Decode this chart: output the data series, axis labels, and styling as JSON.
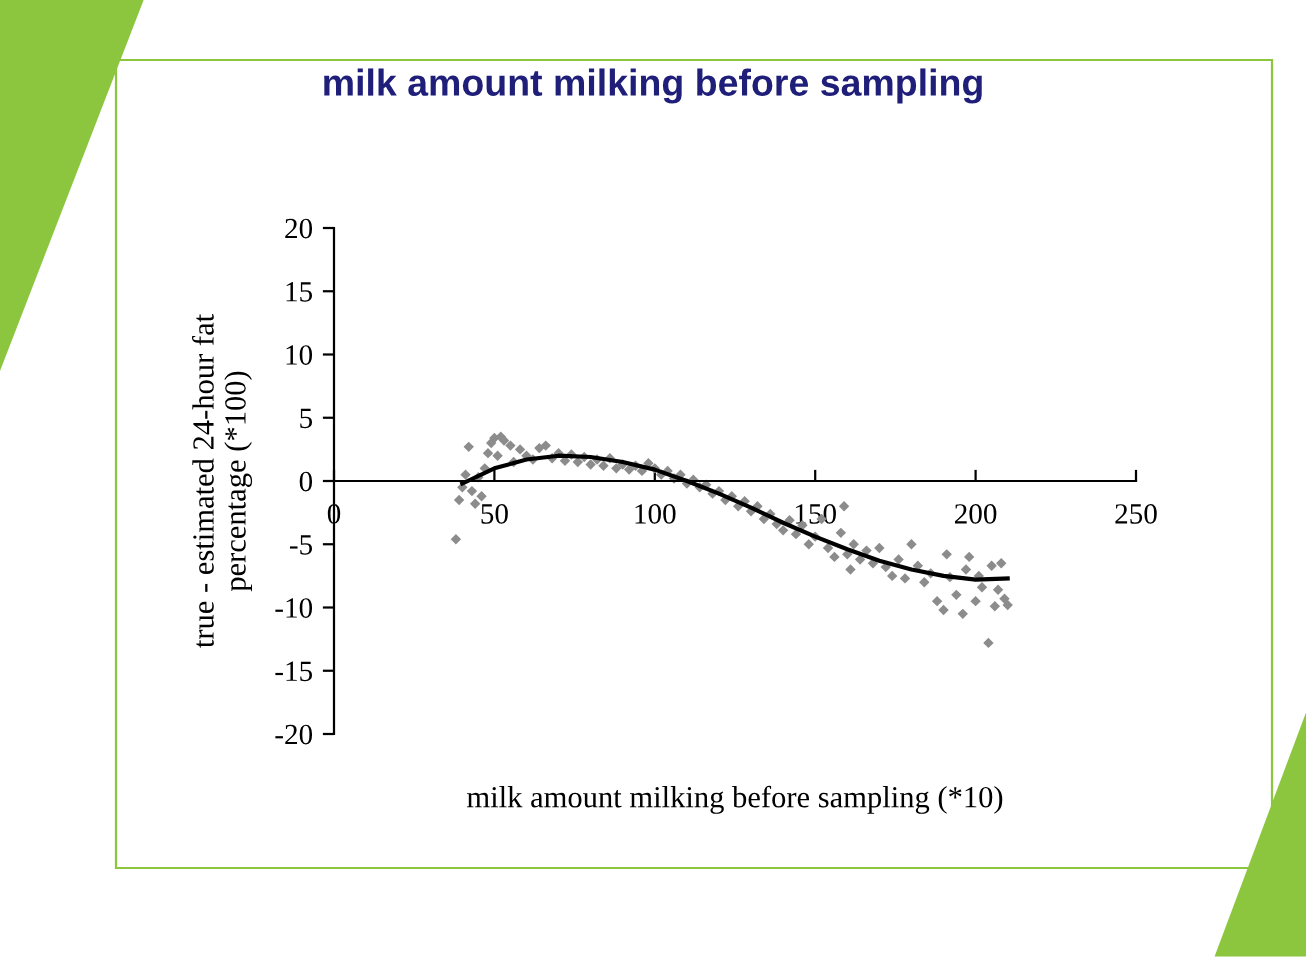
{
  "chart_data": {
    "type": "scatter",
    "title": "milk amount milking before sampling",
    "xlabel": "milk amount milking before sampling (*10)",
    "ylabel": "true - estimated 24-hour fat\npercentage (*100)",
    "xlim": [
      0,
      250
    ],
    "xticks": [
      0,
      50,
      100,
      150,
      200,
      250
    ],
    "ylim": [
      -20,
      20
    ],
    "yticks": [
      -20,
      -15,
      -10,
      -5,
      0,
      5,
      10,
      15,
      20
    ],
    "grid": false,
    "legend": false,
    "marker": "diamond",
    "series": [
      {
        "color": "#8c8c8c",
        "x": [
          38,
          39,
          40,
          41,
          42,
          43,
          44,
          45,
          46,
          47,
          48,
          49,
          50,
          51,
          52,
          53,
          55,
          56,
          58,
          60,
          62,
          64,
          66,
          68,
          70,
          72,
          74,
          76,
          78,
          80,
          82,
          84,
          86,
          88,
          90,
          92,
          94,
          96,
          98,
          100,
          102,
          104,
          106,
          108,
          110,
          112,
          114,
          116,
          118,
          120,
          122,
          124,
          126,
          128,
          130,
          132,
          134,
          136,
          138,
          140,
          142,
          144,
          146,
          148,
          150,
          152,
          154,
          156,
          158,
          159,
          160,
          161,
          162,
          164,
          166,
          168,
          170,
          172,
          174,
          176,
          178,
          180,
          182,
          184,
          186,
          188,
          190,
          191,
          192,
          194,
          196,
          197,
          198,
          200,
          201,
          202,
          204,
          205,
          206,
          207,
          208,
          209,
          210
        ],
        "values": [
          -4.6,
          -1.5,
          -0.5,
          0.5,
          2.7,
          -0.8,
          -1.8,
          0.3,
          -1.2,
          1.0,
          2.2,
          3.0,
          3.4,
          2.0,
          3.5,
          3.2,
          2.8,
          1.5,
          2.5,
          2.0,
          1.7,
          2.6,
          2.8,
          1.8,
          2.2,
          1.6,
          2.1,
          1.5,
          1.9,
          1.3,
          1.7,
          1.2,
          1.8,
          1.0,
          1.3,
          0.9,
          1.2,
          0.8,
          1.4,
          1.0,
          0.5,
          0.8,
          0.2,
          0.5,
          -0.2,
          0.1,
          -0.5,
          -0.3,
          -1.0,
          -0.8,
          -1.5,
          -1.2,
          -2.0,
          -1.6,
          -2.4,
          -2.0,
          -3.0,
          -2.6,
          -3.4,
          -3.9,
          -3.1,
          -4.2,
          -3.5,
          -5.0,
          -4.4,
          -3.0,
          -5.3,
          -6.0,
          -4.1,
          -2.0,
          -5.8,
          -7.0,
          -5.0,
          -6.2,
          -5.5,
          -6.5,
          -5.3,
          -6.8,
          -7.5,
          -6.2,
          -7.7,
          -5.0,
          -6.7,
          -8.0,
          -7.3,
          -9.5,
          -10.2,
          -5.8,
          -7.6,
          -9.0,
          -10.5,
          -7.0,
          -6.0,
          -9.5,
          -7.5,
          -8.4,
          -12.8,
          -6.7,
          -9.9,
          -8.6,
          -6.5,
          -9.3,
          -9.8
        ]
      },
      {
        "type": "line",
        "color": "#000000",
        "marker": "none",
        "line_style": "solid",
        "x": [
          40,
          50,
          60,
          70,
          80,
          90,
          100,
          110,
          120,
          130,
          140,
          150,
          160,
          170,
          180,
          190,
          200,
          210
        ],
        "values": [
          -0.2,
          1.0,
          1.7,
          2.0,
          1.9,
          1.5,
          0.9,
          0.0,
          -1.0,
          -2.1,
          -3.3,
          -4.4,
          -5.4,
          -6.3,
          -7.0,
          -7.5,
          -7.8,
          -7.7
        ]
      }
    ]
  }
}
